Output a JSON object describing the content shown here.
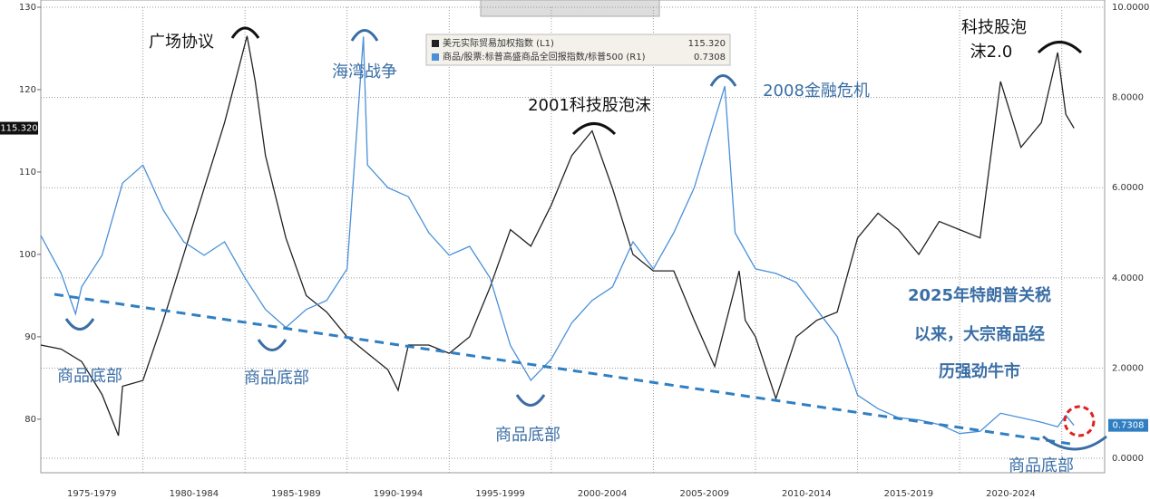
{
  "chart_data": {
    "type": "line",
    "xlim": [
      1975,
      2027.1
    ],
    "xticks": [
      {
        "value": 1977.5,
        "label": "1975-1979"
      },
      {
        "value": 1982.5,
        "label": "1980-1984"
      },
      {
        "value": 1987.5,
        "label": "1985-1989"
      },
      {
        "value": 1992.5,
        "label": "1990-1994"
      },
      {
        "value": 1997.5,
        "label": "1995-1999"
      },
      {
        "value": 2002.5,
        "label": "2000-2004"
      },
      {
        "value": 2007.5,
        "label": "2005-2009"
      },
      {
        "value": 2012.5,
        "label": "2010-2014"
      },
      {
        "value": 2017.5,
        "label": "2015-2019"
      },
      {
        "value": 2022.5,
        "label": "2020-2024"
      }
    ],
    "ylim": [
      73.5,
      130
    ],
    "yticks": [
      80,
      90,
      100,
      110,
      120,
      130
    ],
    "y2lim": [
      -0.32,
      10
    ],
    "y2ticks": [
      {
        "value": 0,
        "label": "0.0000"
      },
      {
        "value": 2,
        "label": "2.0000"
      },
      {
        "value": 4,
        "label": "4.0000"
      },
      {
        "value": 6,
        "label": "6.0000"
      },
      {
        "value": 8,
        "label": "8.0000"
      },
      {
        "value": 10,
        "label": "10.0000"
      }
    ],
    "grid": true,
    "series": [
      {
        "name": "美元实际贸易加权指数 (L1)",
        "color": "#222222",
        "axis": "y",
        "last_label": "115.320",
        "x": [
          1975,
          1976,
          1977,
          1978,
          1978.8,
          1979,
          1980,
          1981,
          1982,
          1983,
          1984,
          1985.1,
          1985.5,
          1986,
          1987,
          1988,
          1989,
          1990,
          1991,
          1992,
          1992.5,
          1993,
          1994,
          1995,
          1996,
          1997,
          1998,
          1999,
          2000,
          2001,
          2002,
          2003,
          2004,
          2005,
          2006,
          2007,
          2008,
          2009.2,
          2009.5,
          2010,
          2011,
          2012,
          2013,
          2014,
          2015,
          2016,
          2017,
          2018,
          2019,
          2020,
          2021,
          2022,
          2023,
          2024,
          2024.8,
          2025.2,
          2025.6
        ],
        "values": [
          89,
          88.5,
          87,
          83,
          78,
          84,
          84.7,
          92,
          100,
          108,
          116,
          126.5,
          121,
          112,
          102,
          95,
          93,
          90,
          88,
          86,
          83.5,
          89,
          89,
          88,
          90,
          96,
          103,
          101,
          106,
          112,
          115,
          108,
          100,
          98,
          98,
          92,
          86.4,
          98,
          92,
          90,
          82.5,
          90,
          92,
          93,
          102,
          105,
          103,
          100,
          104,
          103,
          102,
          121,
          113,
          116,
          124.5,
          117,
          115.32
        ]
      },
      {
        "name": "商品/股票:标普高盛商品全回报指数/标普500 (R1)",
        "color": "#4a90d9",
        "axis": "y2",
        "last_label": "0.7308",
        "x": [
          1975,
          1976,
          1976.7,
          1977,
          1978,
          1979,
          1980,
          1981,
          1982,
          1983,
          1984,
          1985,
          1986,
          1987,
          1988,
          1989,
          1990,
          1990.8,
          1991,
          1992,
          1993,
          1994,
          1995,
          1996,
          1997,
          1998,
          1999,
          2000,
          2001,
          2002,
          2003,
          2004,
          2005,
          2006,
          2007,
          2008.5,
          2009,
          2010,
          2011,
          2012,
          2013,
          2014,
          2015,
          2016,
          2017,
          2018,
          2019,
          2020,
          2021,
          2022,
          2023,
          2024,
          2024.8,
          2025.2,
          2025.6
        ],
        "values": [
          4.94,
          4.1,
          3.2,
          3.8,
          4.5,
          6.1,
          6.5,
          5.5,
          4.8,
          4.5,
          4.8,
          4,
          3.3,
          2.9,
          3.3,
          3.5,
          4.2,
          9.35,
          6.5,
          6,
          5.8,
          5,
          4.5,
          4.7,
          4,
          2.5,
          1.73,
          2.2,
          3,
          3.5,
          3.8,
          4.8,
          4.2,
          5,
          6,
          8.25,
          5,
          4.2,
          4.1,
          3.9,
          3.3,
          2.7,
          1.4,
          1.1,
          0.9,
          0.85,
          0.75,
          0.55,
          0.6,
          1,
          0.9,
          0.8,
          0.7,
          0.95,
          0.7308
        ]
      }
    ],
    "annotations": [
      "广场协议",
      "海湾战争",
      "2001科技股泡沫",
      "2008金融危机",
      "科技股泡",
      "沫2.0",
      "商品底部",
      "商品底部",
      "商品底部",
      "商品底部",
      "2025年特朗普关税",
      "以来，大宗商品经",
      "历强劲牛市"
    ]
  }
}
